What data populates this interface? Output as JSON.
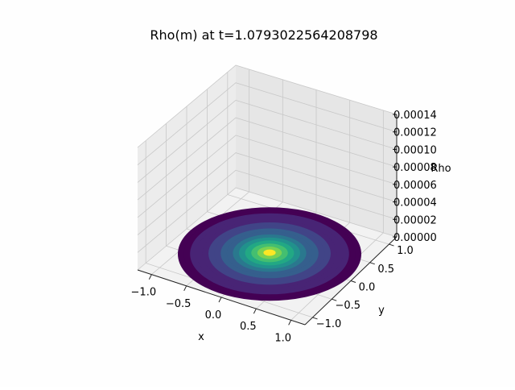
{
  "chart_data": {
    "type": "surface",
    "title": "Rho(m) at t=1.0793022564208798",
    "xlabel": "x",
    "ylabel": "y",
    "zlabel": "Rho",
    "x_ticks": [
      "−1.0",
      "−0.5",
      "0.0",
      "0.5",
      "1.0"
    ],
    "y_ticks": [
      "−1.0",
      "−0.5",
      "0.0",
      "0.5",
      "1.0"
    ],
    "z_ticks": [
      "0.00000",
      "0.00002",
      "0.00004",
      "0.00006",
      "0.00008",
      "0.00010",
      "0.00012",
      "0.00014"
    ],
    "xlim": [
      -1.2,
      1.2
    ],
    "ylim": [
      -1.2,
      1.2
    ],
    "zlim": [
      0,
      0.00014
    ],
    "domain": "disk of radius 1.2 centred at (0,0)",
    "peak": {
      "x": 0.0,
      "y": 0.0,
      "rho": 1.2e-06
    },
    "colormap": [
      "#440154",
      "#482475",
      "#414487",
      "#355f8d",
      "#2a788e",
      "#21918c",
      "#22a884",
      "#44bf70",
      "#7ad151",
      "#bddf26",
      "#fde725"
    ],
    "grid": true
  }
}
